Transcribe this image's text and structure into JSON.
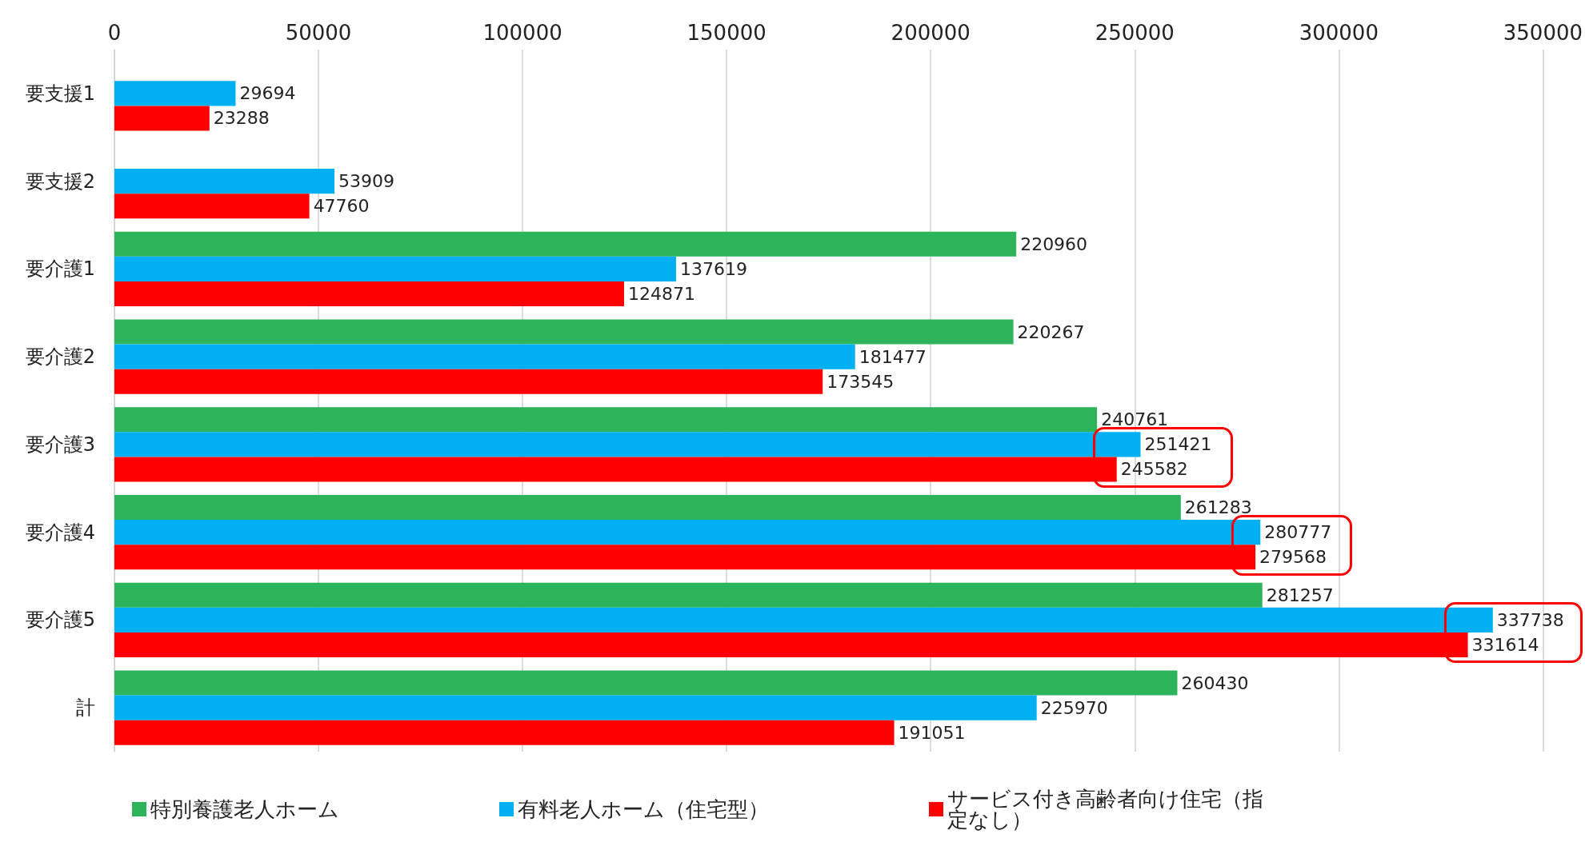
{
  "chart_data": {
    "type": "bar",
    "orientation": "horizontal",
    "categories": [
      "要支援1",
      "要支援2",
      "要介護1",
      "要介護2",
      "要介護3",
      "要介護4",
      "要介護5",
      "計"
    ],
    "series": [
      {
        "name": "特別養護老人ホーム",
        "color": "#2db35a",
        "values": [
          null,
          null,
          220960,
          220267,
          240761,
          261283,
          281257,
          260430
        ]
      },
      {
        "name": "有料老人ホーム（住宅型）",
        "color": "#00b0f0",
        "values": [
          29694,
          53909,
          137619,
          181477,
          251421,
          280777,
          337738,
          225970
        ]
      },
      {
        "name": "サービス付き高齢者向け住宅（指定なし）",
        "color": "#ff0000",
        "values": [
          23288,
          47760,
          124871,
          173545,
          245582,
          279568,
          331614,
          191051
        ]
      }
    ],
    "xlim": [
      0,
      350000
    ],
    "xticks": [
      0,
      50000,
      100000,
      150000,
      200000,
      250000,
      300000,
      350000
    ],
    "grid": "x",
    "legend": "bottom",
    "data_labels": true
  }
}
